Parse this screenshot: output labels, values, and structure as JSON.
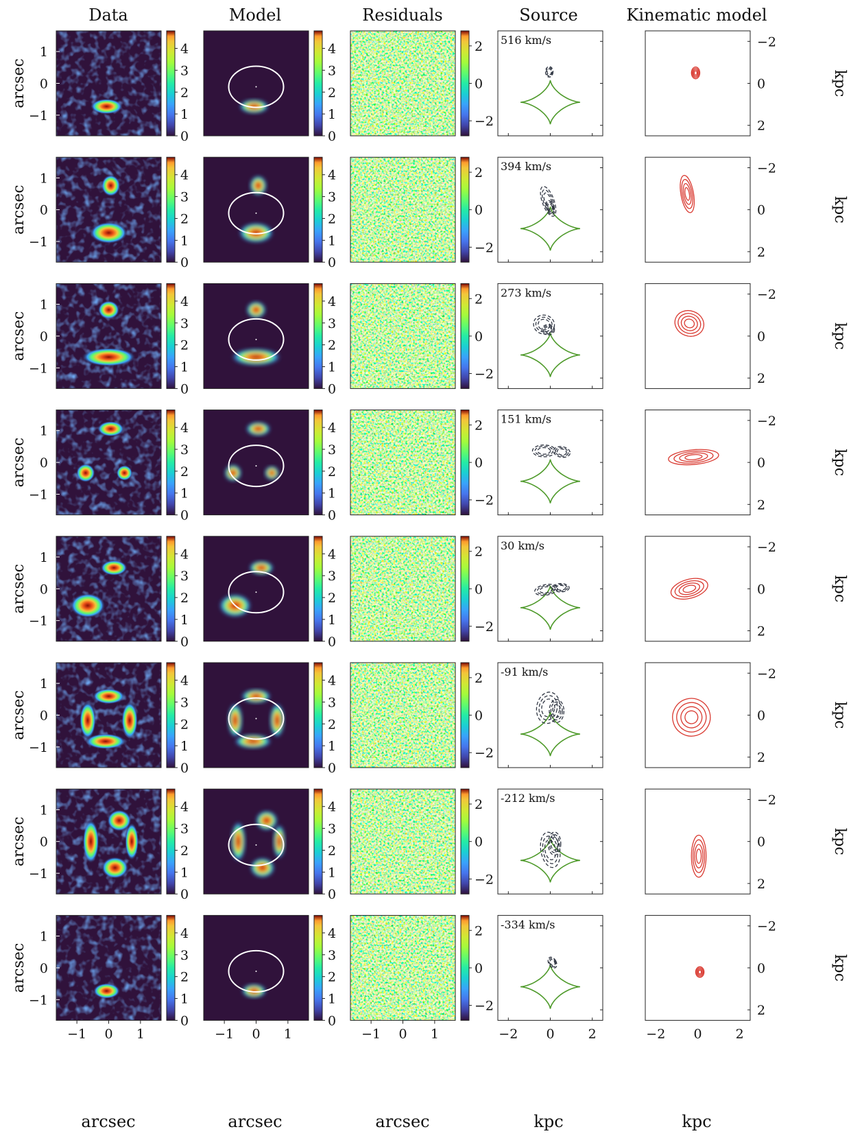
{
  "figure": {
    "column_titles": [
      "Data",
      "Model",
      "Residuals",
      "Source",
      "Kinematic model"
    ],
    "row_velocity_labels": [
      "516 km/s",
      "394 km/s",
      "273 km/s",
      "151 km/s",
      "30 km/s",
      "-91 km/s",
      "-212 km/s",
      "-334 km/s"
    ],
    "image_axis_label": "arcsec",
    "source_axis_label": "kpc",
    "image_ticks": [
      "−1",
      "0",
      "1"
    ],
    "source_ticks": [
      "−2",
      "0",
      "2"
    ],
    "data_colorbar_ticks": [
      "0",
      "1",
      "2",
      "3",
      "4"
    ],
    "residual_colorbar_ticks": [
      "−2",
      "0",
      "2"
    ],
    "colors": {
      "caustic": "#4e9a2a",
      "source_contour": "#2f3542",
      "kinematic_contour": "#d9382f",
      "critical_curve": "#ffffff",
      "colormap_low": "#30123b",
      "colormap_high": "#7a0403"
    }
  }
}
